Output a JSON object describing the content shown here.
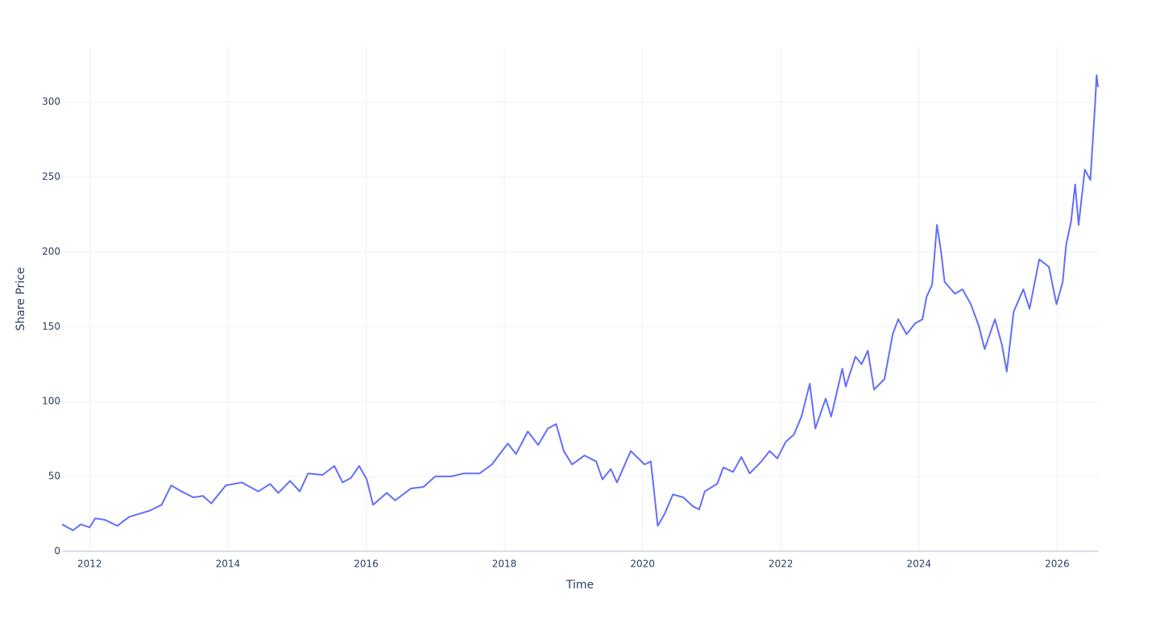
{
  "chart_data": {
    "type": "line",
    "x_label": "Time",
    "y_label": "Share Price",
    "x": [
      2011.6,
      2011.76,
      2011.87,
      2012.0,
      2012.08,
      2012.22,
      2012.4,
      2012.57,
      2012.86,
      2013.04,
      2013.18,
      2013.33,
      2013.5,
      2013.64,
      2013.76,
      2013.97,
      2014.2,
      2014.44,
      2014.61,
      2014.73,
      2014.9,
      2015.04,
      2015.16,
      2015.37,
      2015.54,
      2015.66,
      2015.78,
      2015.9,
      2016.01,
      2016.1,
      2016.3,
      2016.42,
      2016.65,
      2016.83,
      2017.0,
      2017.23,
      2017.41,
      2017.64,
      2017.82,
      2018.05,
      2018.17,
      2018.34,
      2018.49,
      2018.63,
      2018.75,
      2018.86,
      2018.98,
      2019.16,
      2019.33,
      2019.42,
      2019.54,
      2019.63,
      2019.83,
      2020.03,
      2020.12,
      2020.22,
      2020.32,
      2020.44,
      2020.59,
      2020.73,
      2020.82,
      2020.9,
      2021.08,
      2021.17,
      2021.31,
      2021.43,
      2021.55,
      2021.72,
      2021.84,
      2021.95,
      2022.07,
      2022.19,
      2022.3,
      2022.42,
      2022.5,
      2022.65,
      2022.73,
      2022.89,
      2022.94,
      2023.08,
      2023.17,
      2023.26,
      2023.35,
      2023.5,
      2023.62,
      2023.7,
      2023.82,
      2023.94,
      2024.05,
      2024.11,
      2024.19,
      2024.26,
      2024.32,
      2024.37,
      2024.52,
      2024.63,
      2024.75,
      2024.87,
      2024.95,
      2025.1,
      2025.2,
      2025.27,
      2025.37,
      2025.51,
      2025.6,
      2025.74,
      2025.88,
      2025.99,
      2026.08,
      2026.13,
      2026.2,
      2026.26,
      2026.31,
      2026.4,
      2026.48,
      2026.55,
      2026.57,
      2026.59
    ],
    "values": [
      18,
      14,
      18,
      16,
      22,
      21,
      17,
      23,
      27,
      31,
      44,
      40,
      36,
      37,
      32,
      44,
      46,
      40,
      45,
      39,
      47,
      40,
      52,
      51,
      57,
      46,
      49,
      57,
      48,
      31,
      39,
      34,
      42,
      43,
      50,
      50,
      52,
      52,
      58,
      72,
      65,
      80,
      71,
      82,
      85,
      67,
      58,
      64,
      60,
      48,
      55,
      46,
      67,
      58,
      60,
      17,
      25,
      38,
      36,
      30,
      28,
      40,
      45,
      56,
      53,
      63,
      52,
      60,
      67,
      62,
      73,
      78,
      90,
      112,
      82,
      102,
      90,
      122,
      110,
      130,
      125,
      134,
      108,
      115,
      145,
      155,
      145,
      152,
      155,
      170,
      178,
      218,
      200,
      180,
      172,
      175,
      165,
      150,
      135,
      155,
      138,
      120,
      160,
      175,
      162,
      195,
      190,
      165,
      180,
      205,
      220,
      245,
      218,
      255,
      248,
      300,
      318,
      310
    ],
    "color": "#636efa",
    "xlim": [
      2011.6,
      2026.59
    ],
    "xticks": [
      2012,
      2014,
      2016,
      2018,
      2020,
      2022,
      2024,
      2026
    ],
    "ylim": [
      0,
      337
    ],
    "yticks": [
      0,
      50,
      100,
      150,
      200,
      250,
      300
    ],
    "grid": true
  }
}
